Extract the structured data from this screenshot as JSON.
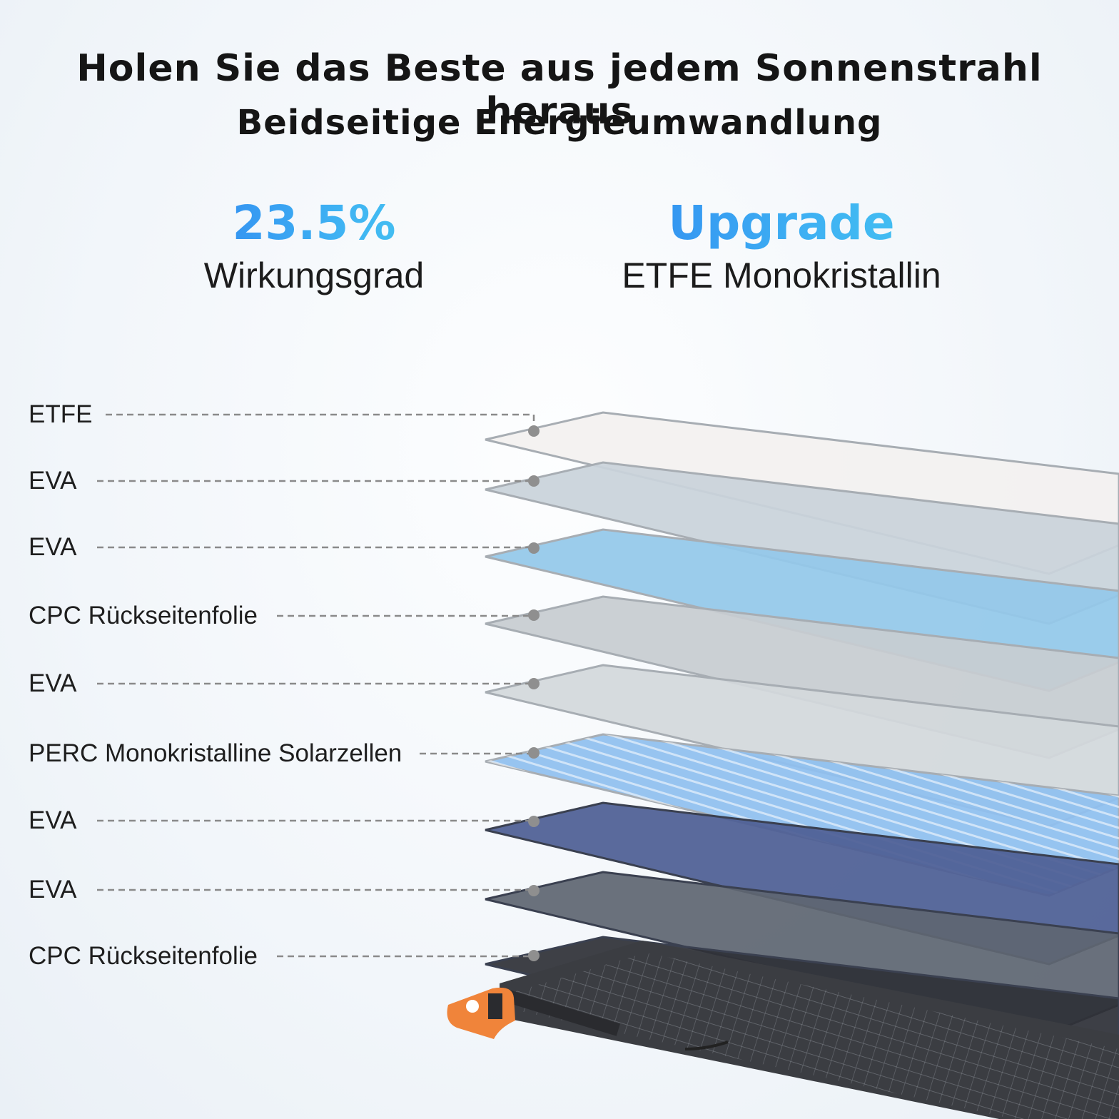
{
  "header": {
    "title": "Holen Sie das Beste aus jedem Sonnenstrahl heraus",
    "subtitle": "Beidseitige Energieumwandlung"
  },
  "stats": [
    {
      "value": "23.5%",
      "label": "Wirkungsgrad"
    },
    {
      "value": "Upgrade",
      "label": "ETFE Monokristallin"
    }
  ],
  "layers": [
    {
      "label": "ETFE",
      "color": "#f3f1ef"
    },
    {
      "label": "EVA",
      "color": "#c9d3da"
    },
    {
      "label": "EVA",
      "color": "#93c8ea"
    },
    {
      "label": "CPC Rückseitenfolie",
      "color": "#c7ccd1"
    },
    {
      "label": "EVA",
      "color": "#d3d8dc"
    },
    {
      "label": "PERC Monokristalline Solarzellen",
      "color": "#8fc0ef"
    },
    {
      "label": "EVA",
      "color": "#4e5f94"
    },
    {
      "label": "EVA",
      "color": "#5f6672"
    },
    {
      "label": "CPC Rückseitenfolie",
      "color": "#2f3238"
    }
  ],
  "colors": {
    "accent_start": "#2f86f0",
    "accent_end": "#46c8ef",
    "connector": "#8a8a8a",
    "hinge": "#f0843a"
  }
}
